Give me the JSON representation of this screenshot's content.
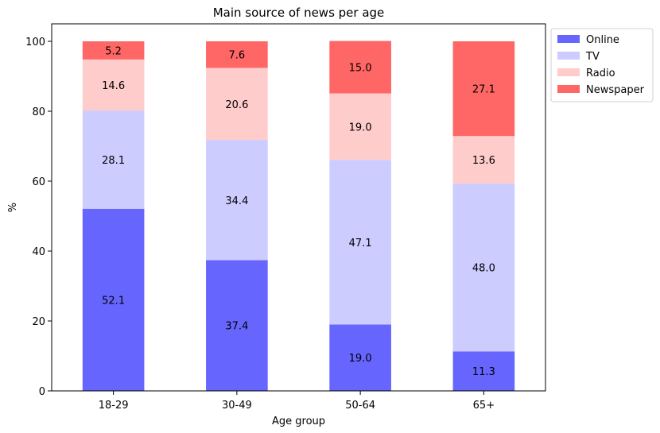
{
  "chart_data": {
    "type": "bar",
    "stacked": true,
    "title": "Main source of news per age",
    "xlabel": "Age group",
    "ylabel": "%",
    "categories": [
      "18-29",
      "30-49",
      "50-64",
      "65+"
    ],
    "ylim": [
      0,
      105
    ],
    "yticks": [
      0,
      20,
      40,
      60,
      80,
      100
    ],
    "legend_position": "outside-top-right",
    "series": [
      {
        "name": "Online",
        "color": "#6666ff",
        "values": [
          52.1,
          37.4,
          19.0,
          11.3
        ],
        "labels": [
          "52.1",
          "37.4",
          "19.0",
          "11.3"
        ]
      },
      {
        "name": "TV",
        "color": "#ccccff",
        "values": [
          28.1,
          34.4,
          47.1,
          48.0
        ],
        "labels": [
          "28.1",
          "34.4",
          "47.1",
          "48.0"
        ]
      },
      {
        "name": "Radio",
        "color": "#ffcccc",
        "values": [
          14.6,
          20.6,
          19.0,
          13.6
        ],
        "labels": [
          "14.6",
          "20.6",
          "19.0",
          "13.6"
        ]
      },
      {
        "name": "Newspaper",
        "color": "#ff6666",
        "values": [
          5.2,
          7.6,
          15.0,
          27.1
        ],
        "labels": [
          "5.2",
          "7.6",
          "15.0",
          "27.1"
        ]
      }
    ]
  }
}
